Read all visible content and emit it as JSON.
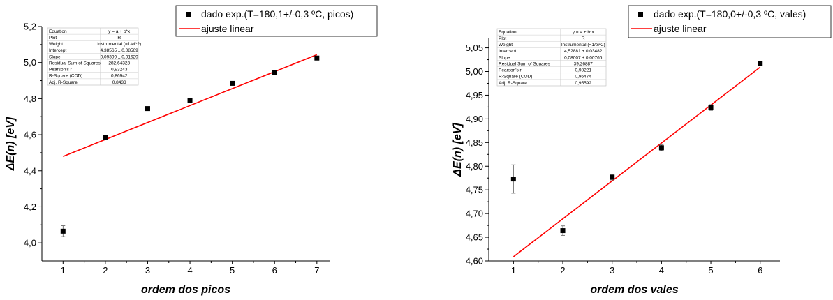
{
  "chart_data": [
    {
      "type": "scatter",
      "xlabel": "ordem dos picos",
      "ylabel": "ΔE(n) [eV]",
      "xlim": [
        0.5,
        7.3
      ],
      "ylim": [
        3.9,
        5.2
      ],
      "x_ticks": [
        "1",
        "2",
        "3",
        "4",
        "5",
        "6",
        "7"
      ],
      "y_ticks": [
        "4,0",
        "4,2",
        "4,4",
        "4,6",
        "4,8",
        "5,0",
        "5,2"
      ],
      "series": [
        {
          "name": "dado exp.(T=180,1+/-0,3 ºC, picos)",
          "x": [
            1,
            2,
            3,
            4,
            5,
            6,
            7
          ],
          "y": [
            4.065,
            4.585,
            4.745,
            4.79,
            4.885,
            4.945,
            5.025
          ],
          "yerr": [
            0.03,
            0.005,
            0.005,
            0.005,
            0.005,
            0.005,
            0.005
          ]
        }
      ],
      "fit": {
        "name": "ajuste linear",
        "x": [
          1,
          7
        ],
        "y": [
          4.4796,
          5.0436
        ],
        "color": "#ff0000"
      },
      "legend_position": "top-right, above plot",
      "grid": false,
      "stats_table": [
        [
          "Equation",
          "y = a + b*x"
        ],
        [
          "Plot",
          "R"
        ],
        [
          "Weight",
          "Instrumental (=1/ei^2)"
        ],
        [
          "Intercept",
          "4,38565 ± 0,08569"
        ],
        [
          "Slope",
          "0,09399 ± 0,01629"
        ],
        [
          "Residual Sum of Squares",
          "282,64323"
        ],
        [
          "Pearson's r",
          "0,93243"
        ],
        [
          "R-Square (COD)",
          "0,86942"
        ],
        [
          "Adj. R-Square",
          "0,8433"
        ]
      ]
    },
    {
      "type": "scatter",
      "xlabel": "ordem dos vales",
      "ylabel": "ΔE(n) [eV]",
      "xlim": [
        0.5,
        6.4
      ],
      "ylim": [
        4.6,
        5.07
      ],
      "x_ticks": [
        "1",
        "2",
        "3",
        "4",
        "5",
        "6"
      ],
      "y_ticks": [
        "4,60",
        "4,65",
        "4,70",
        "4,75",
        "4,80",
        "4,85",
        "4,90",
        "4,95",
        "5,00",
        "5,05"
      ],
      "series": [
        {
          "name": "dado exp.(T=180,0+/-0,3 ºC, vales)",
          "x": [
            1,
            2,
            3,
            4,
            5,
            6
          ],
          "y": [
            4.773,
            4.664,
            4.777,
            4.839,
            4.924,
            5.017
          ],
          "yerr": [
            0.03,
            0.01,
            0.006,
            0.006,
            0.006,
            0.005
          ]
        }
      ],
      "fit": {
        "name": "ajuste linear",
        "x": [
          1,
          6
        ],
        "y": [
          4.6089,
          5.0092
        ],
        "color": "#ff0000"
      },
      "legend_position": "top-right, above plot",
      "grid": false,
      "stats_table": [
        [
          "Equation",
          "y = a + b*x"
        ],
        [
          "Plot",
          "R"
        ],
        [
          "Weight",
          "Instrumental (=1/ei^2)"
        ],
        [
          "Intercept",
          "4,52881 ± 0,03482"
        ],
        [
          "Slope",
          "0,08007 ± 0,00765"
        ],
        [
          "Residual Sum of Squares",
          "39,26887"
        ],
        [
          "Pearson's r",
          "0,98221"
        ],
        [
          "R-Square (COD)",
          "0,96474"
        ],
        [
          "Adj. R-Square",
          "0,95592"
        ]
      ]
    }
  ]
}
